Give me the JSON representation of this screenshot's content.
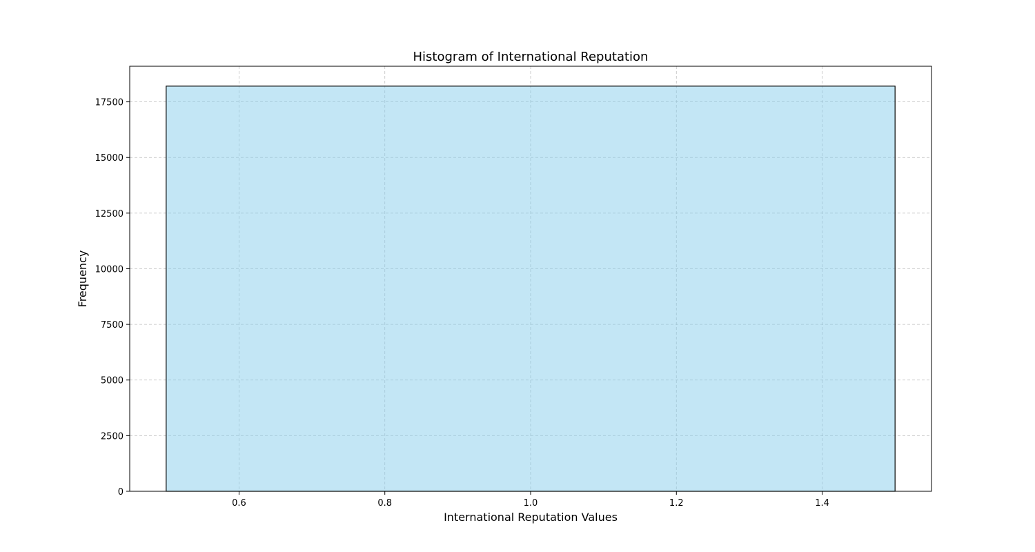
{
  "chart_data": {
    "type": "bar",
    "title": "Histogram of International Reputation",
    "xlabel": "International Reputation Values",
    "ylabel": "Frequency",
    "bins": [
      {
        "x_start": 0.5,
        "x_end": 1.5,
        "value": 18207
      }
    ],
    "xlim": [
      0.45,
      1.55
    ],
    "ylim": [
      0,
      19100
    ],
    "x_ticks": [
      0.6,
      0.8,
      1.0,
      1.2,
      1.4
    ],
    "x_tick_labels": [
      "0.6",
      "0.8",
      "1.0",
      "1.2",
      "1.4"
    ],
    "y_ticks": [
      0,
      2500,
      5000,
      7500,
      10000,
      12500,
      15000,
      17500
    ],
    "y_tick_labels": [
      "0",
      "2500",
      "5000",
      "7500",
      "10000",
      "12500",
      "15000",
      "17500"
    ],
    "grid": true,
    "bar_color": "#87CEEB",
    "bar_opacity": 0.5,
    "edge_color": "#000000",
    "grid_color": "#b0b0b0"
  }
}
